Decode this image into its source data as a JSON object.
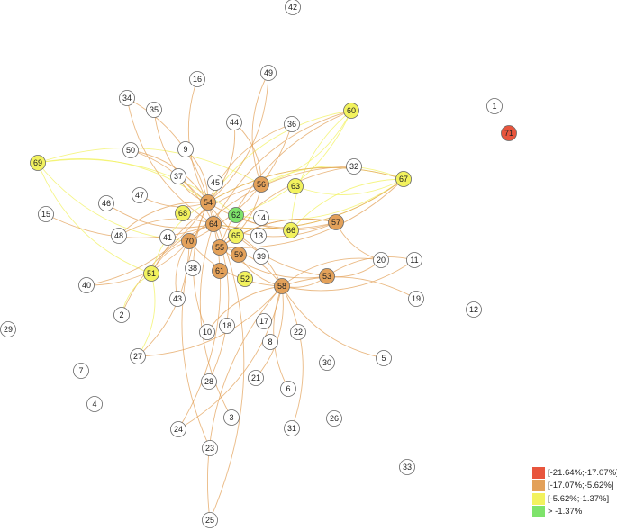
{
  "nodes": [
    {
      "label": "42",
      "color": "#ffffff"
    },
    {
      "label": "49",
      "color": "#ffffff"
    },
    {
      "label": "16",
      "color": "#ffffff"
    },
    {
      "label": "34",
      "color": "#ffffff"
    },
    {
      "label": "35",
      "color": "#ffffff"
    },
    {
      "label": "36",
      "color": "#ffffff"
    },
    {
      "label": "44",
      "color": "#ffffff"
    },
    {
      "label": "60",
      "color": "#f2f25e"
    },
    {
      "label": "1",
      "color": "#ffffff"
    },
    {
      "label": "71",
      "color": "#e8553d"
    },
    {
      "label": "50",
      "color": "#ffffff"
    },
    {
      "label": "9",
      "color": "#ffffff"
    },
    {
      "label": "32",
      "color": "#ffffff"
    },
    {
      "label": "69",
      "color": "#f2f25e"
    },
    {
      "label": "67",
      "color": "#f2f25e"
    },
    {
      "label": "37",
      "color": "#ffffff"
    },
    {
      "label": "45",
      "color": "#ffffff"
    },
    {
      "label": "56",
      "color": "#e3a15a"
    },
    {
      "label": "63",
      "color": "#f2f25e"
    },
    {
      "label": "47",
      "color": "#ffffff"
    },
    {
      "label": "46",
      "color": "#ffffff"
    },
    {
      "label": "54",
      "color": "#e3a15a"
    },
    {
      "label": "15",
      "color": "#ffffff"
    },
    {
      "label": "68",
      "color": "#f2f25e"
    },
    {
      "label": "62",
      "color": "#7ee36b"
    },
    {
      "label": "14",
      "color": "#ffffff"
    },
    {
      "label": "64",
      "color": "#e3a15a"
    },
    {
      "label": "57",
      "color": "#e3a15a"
    },
    {
      "label": "66",
      "color": "#f2f25e"
    },
    {
      "label": "48",
      "color": "#ffffff"
    },
    {
      "label": "41",
      "color": "#ffffff"
    },
    {
      "label": "70",
      "color": "#e3a15a"
    },
    {
      "label": "65",
      "color": "#f2f25e"
    },
    {
      "label": "13",
      "color": "#ffffff"
    },
    {
      "label": "55",
      "color": "#e3a15a"
    },
    {
      "label": "59",
      "color": "#e3a15a"
    },
    {
      "label": "39",
      "color": "#ffffff"
    },
    {
      "label": "20",
      "color": "#ffffff"
    },
    {
      "label": "11",
      "color": "#ffffff"
    },
    {
      "label": "61",
      "color": "#e3a15a"
    },
    {
      "label": "38",
      "color": "#ffffff"
    },
    {
      "label": "51",
      "color": "#f2f25e"
    },
    {
      "label": "52",
      "color": "#f2f25e"
    },
    {
      "label": "53",
      "color": "#e3a15a"
    },
    {
      "label": "58",
      "color": "#e3a15a"
    },
    {
      "label": "40",
      "color": "#ffffff"
    },
    {
      "label": "43",
      "color": "#ffffff"
    },
    {
      "label": "19",
      "color": "#ffffff"
    },
    {
      "label": "12",
      "color": "#ffffff"
    },
    {
      "label": "2",
      "color": "#ffffff"
    },
    {
      "label": "17",
      "color": "#ffffff"
    },
    {
      "label": "18",
      "color": "#ffffff"
    },
    {
      "label": "22",
      "color": "#ffffff"
    },
    {
      "label": "10",
      "color": "#ffffff"
    },
    {
      "label": "29",
      "color": "#ffffff"
    },
    {
      "label": "8",
      "color": "#ffffff"
    },
    {
      "label": "27",
      "color": "#ffffff"
    },
    {
      "label": "5",
      "color": "#ffffff"
    },
    {
      "label": "30",
      "color": "#ffffff"
    },
    {
      "label": "7",
      "color": "#ffffff"
    },
    {
      "label": "28",
      "color": "#ffffff"
    },
    {
      "label": "21",
      "color": "#ffffff"
    },
    {
      "label": "6",
      "color": "#ffffff"
    },
    {
      "label": "4",
      "color": "#ffffff"
    },
    {
      "label": "3",
      "color": "#ffffff"
    },
    {
      "label": "26",
      "color": "#ffffff"
    },
    {
      "label": "31",
      "color": "#ffffff"
    },
    {
      "label": "24",
      "color": "#ffffff"
    },
    {
      "label": "23",
      "color": "#ffffff"
    },
    {
      "label": "33",
      "color": "#ffffff"
    },
    {
      "label": "25",
      "color": "#ffffff"
    }
  ],
  "legend": [
    {
      "label": "[-21.64%;-17.07%]",
      "color": "#e8553d"
    },
    {
      "label": "[-17.07%;-5.62%]",
      "color": "#e3a15a"
    },
    {
      "label": "[-5.62%;-1.37%]",
      "color": "#f2f25e"
    },
    {
      "label": "> -1.37%",
      "color": "#7ee36b"
    }
  ]
}
